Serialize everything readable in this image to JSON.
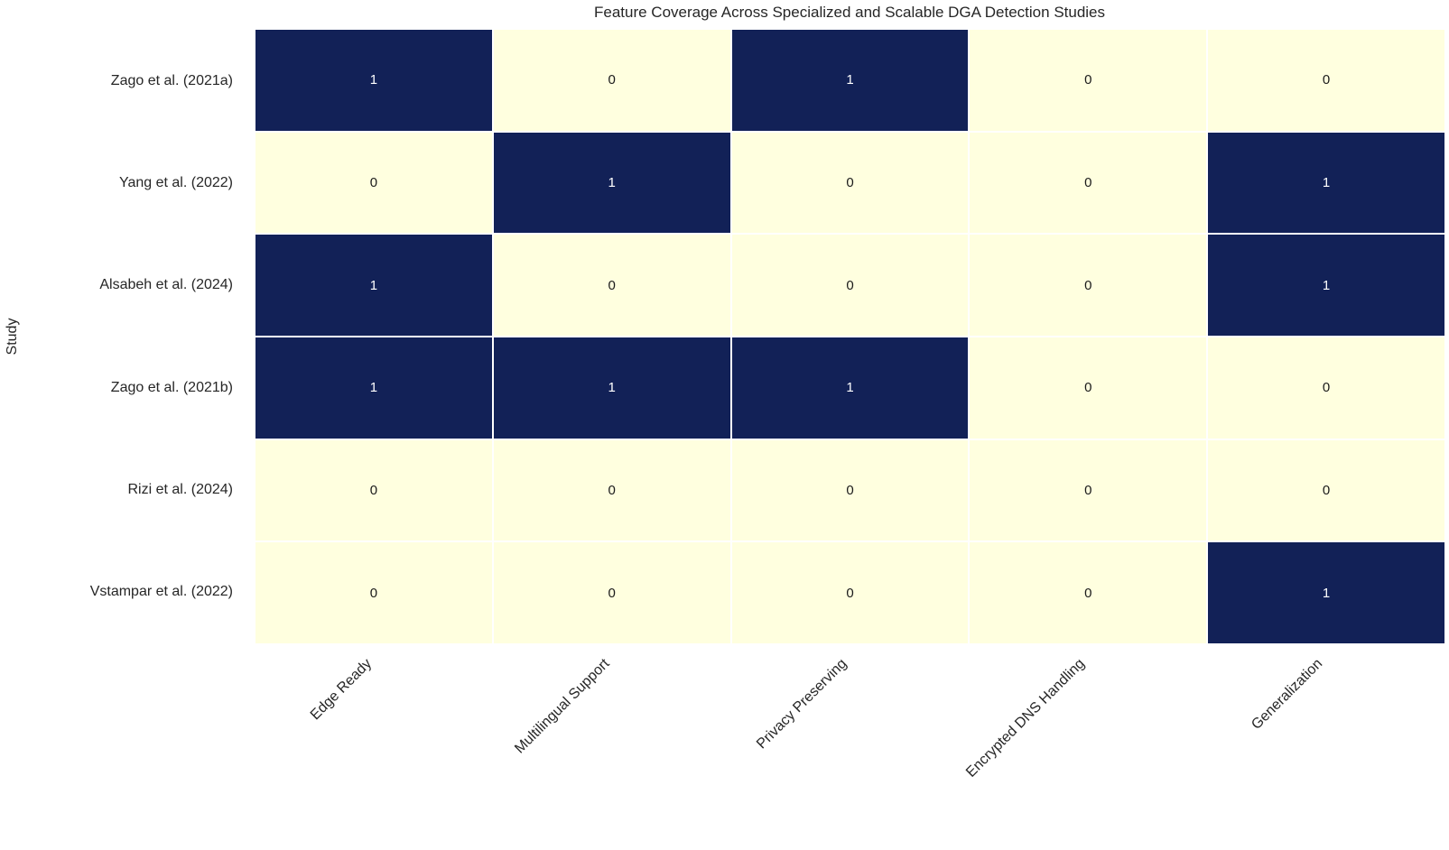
{
  "figure": {
    "title": "Feature Coverage Across Specialized and Scalable DGA Detection Studies",
    "ylabel": "Study"
  },
  "chart_data": {
    "type": "heatmap",
    "title": "Feature Coverage Across Specialized and Scalable DGA Detection Studies",
    "xlabel": "",
    "ylabel": "Study",
    "rows": [
      "Zago et al. (2021a)",
      "Yang et al. (2022)",
      "Alsabeh et al. (2024)",
      "Zago et al. (2021b)",
      "Rizi et al. (2024)",
      "Vstampar et al. (2022)"
    ],
    "columns": [
      "Edge Ready",
      "Multilingual Support",
      "Privacy Preserving",
      "Encrypted DNS Handling",
      "Generalization"
    ],
    "values": [
      [
        1,
        0,
        1,
        0,
        0
      ],
      [
        0,
        1,
        0,
        0,
        1
      ],
      [
        1,
        0,
        0,
        0,
        1
      ],
      [
        1,
        1,
        1,
        0,
        0
      ],
      [
        0,
        0,
        0,
        0,
        0
      ],
      [
        0,
        0,
        0,
        0,
        1
      ]
    ],
    "value_range": [
      0,
      1
    ],
    "annotated": true,
    "legend_position": "none",
    "grid": true,
    "colors": {
      "value_1_fill": "#122157",
      "value_0_fill": "#ffffdf",
      "text_on_1": "#ffffff",
      "text_on_0": "#1a1a1a",
      "grid_line": "#ffffff",
      "label_text": "#262626"
    }
  }
}
